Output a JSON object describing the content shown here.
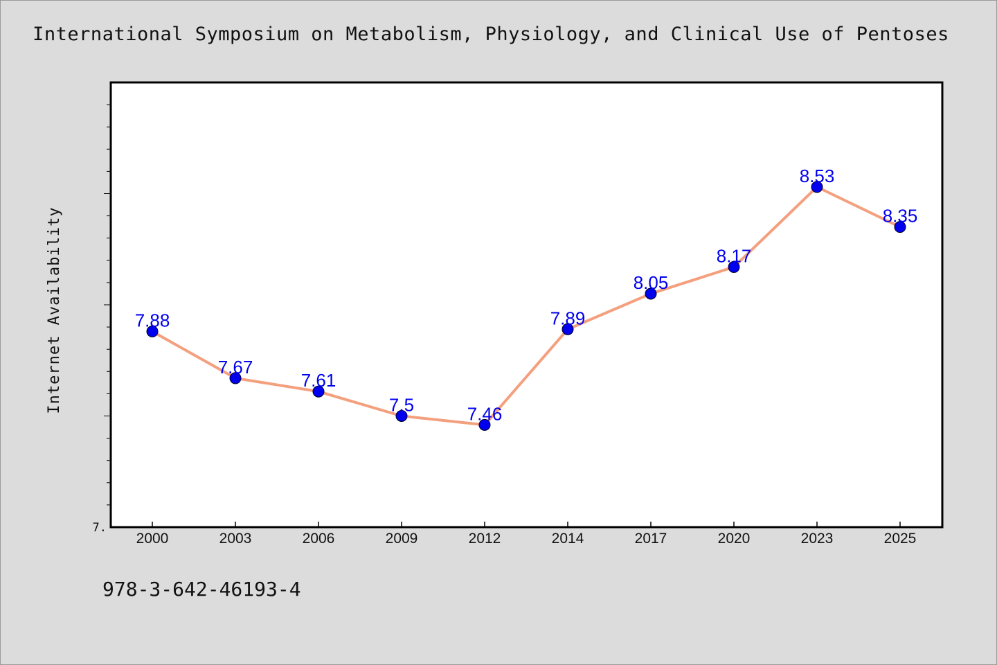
{
  "chart_data": {
    "type": "line",
    "title": "International Symposium on Metabolism, Physiology, and Clinical Use of Pentoses",
    "ylabel": "Internet Availability",
    "xlabel": "",
    "categories": [
      "2000",
      "2003",
      "2006",
      "2009",
      "2012",
      "2014",
      "2017",
      "2020",
      "2023",
      "2025"
    ],
    "series": [
      {
        "values": [
          7.88,
          7.67,
          7.61,
          7.5,
          7.46,
          7.89,
          8.05,
          8.17,
          8.53,
          8.35
        ],
        "data_labels": [
          "7.88",
          "7.67",
          "7.61",
          "7.5",
          "7.46",
          "7.89",
          "8.05",
          "8.17",
          "8.53",
          "8.35"
        ]
      }
    ],
    "ylim": [
      7.0,
      9.0
    ],
    "y_tick_labels": [
      "7."
    ],
    "grid": false,
    "legend": "none",
    "colors": {
      "line": "#f4a07e",
      "marker": "#0000ee",
      "data_label": "#0000ee",
      "plot_background": "#ffffff",
      "page_background": "#dcdcdc"
    }
  },
  "footer": {
    "isbn": "978-3-642-46193-4"
  }
}
